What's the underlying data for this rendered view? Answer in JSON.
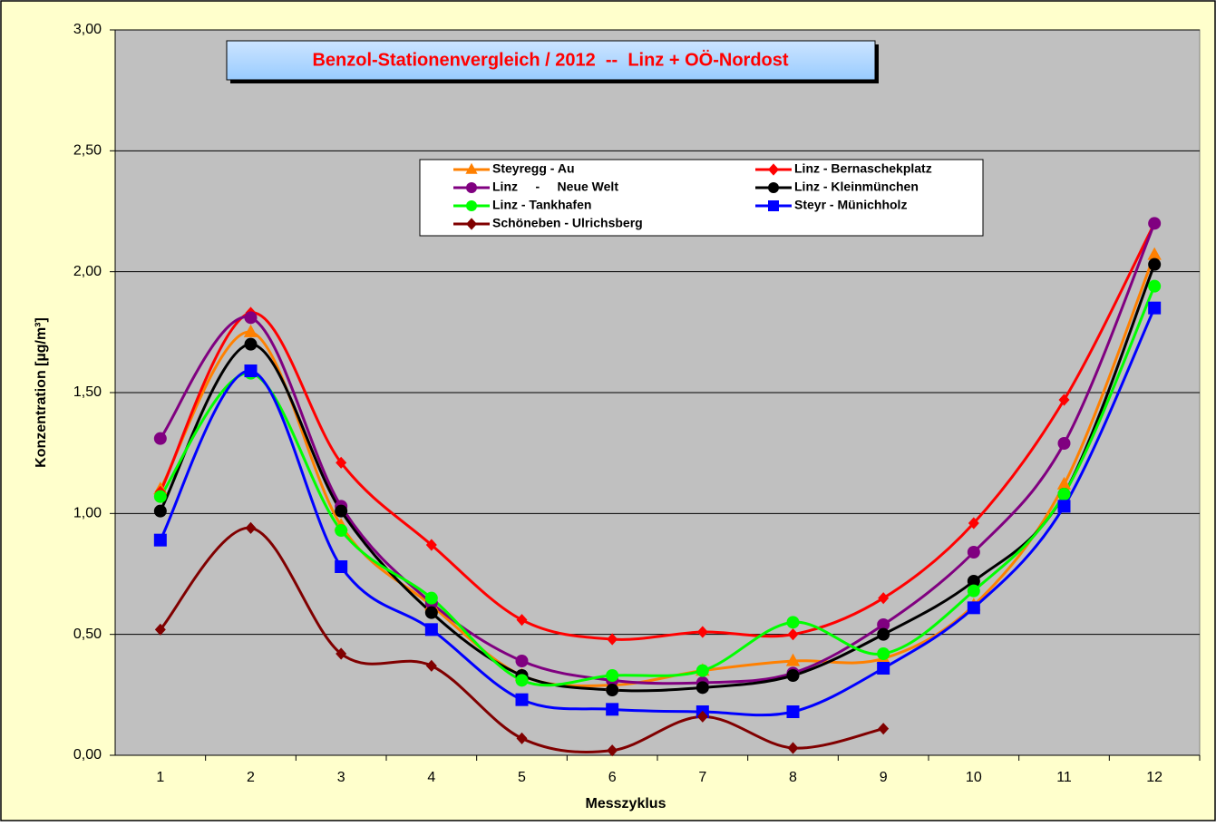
{
  "chart_data": {
    "type": "line",
    "title": "Benzol-Stationenvergleich / 2012  --  Linz + OÖ-Nordost",
    "x_label": "Messzyklus",
    "y_label": "Konzentration [µg/m³]",
    "categories": [
      "1",
      "2",
      "3",
      "4",
      "5",
      "6",
      "7",
      "8",
      "9",
      "10",
      "11",
      "12"
    ],
    "ylim": [
      0,
      3
    ],
    "yticks": [
      {
        "value": 0,
        "label": "0,00"
      },
      {
        "value": 0.5,
        "label": "0,50"
      },
      {
        "value": 1,
        "label": "1,00"
      },
      {
        "value": 1.5,
        "label": "1,50"
      },
      {
        "value": 2,
        "label": "2,00"
      },
      {
        "value": 2.5,
        "label": "2,50"
      },
      {
        "value": 3,
        "label": "3,00"
      }
    ],
    "grid": true,
    "series": [
      {
        "name": "Steyregg - Au",
        "color": "#ff8000",
        "marker": "triangle",
        "values": [
          1.1,
          1.75,
          0.95,
          0.62,
          0.33,
          0.29,
          0.35,
          0.39,
          0.4,
          0.62,
          1.12,
          2.07
        ]
      },
      {
        "name": "Linz - Bernaschekplatz",
        "color": "#ff0000",
        "marker": "diamond",
        "values": [
          1.09,
          1.83,
          1.21,
          0.87,
          0.56,
          0.48,
          0.51,
          0.5,
          0.65,
          0.96,
          1.47,
          2.2
        ]
      },
      {
        "name": "Linz     -     Neue Welt",
        "color": "#800080",
        "marker": "circle",
        "values": [
          1.31,
          1.81,
          1.03,
          0.63,
          0.39,
          0.31,
          0.3,
          0.34,
          0.54,
          0.84,
          1.29,
          2.2
        ]
      },
      {
        "name": "Linz - Kleinmünchen",
        "color": "#000000",
        "marker": "circle",
        "values": [
          1.01,
          1.7,
          1.01,
          0.59,
          0.33,
          0.27,
          0.28,
          0.33,
          0.5,
          0.72,
          1.08,
          2.03
        ]
      },
      {
        "name": "Linz - Tankhafen",
        "color": "#00ff00",
        "marker": "circle",
        "values": [
          1.07,
          1.58,
          0.93,
          0.65,
          0.31,
          0.33,
          0.35,
          0.55,
          0.42,
          0.68,
          1.08,
          1.94
        ]
      },
      {
        "name": "Steyr - Münichholz",
        "color": "#0000ff",
        "marker": "square",
        "values": [
          0.89,
          1.59,
          0.78,
          0.52,
          0.23,
          0.19,
          0.18,
          0.18,
          0.36,
          0.61,
          1.03,
          1.85
        ]
      },
      {
        "name": "Schöneben - Ulrichsberg",
        "color": "#800000",
        "marker": "diamond",
        "values": [
          0.52,
          0.94,
          0.42,
          0.37,
          0.07,
          0.02,
          0.16,
          0.03,
          0.11,
          null,
          null,
          null
        ]
      }
    ]
  }
}
